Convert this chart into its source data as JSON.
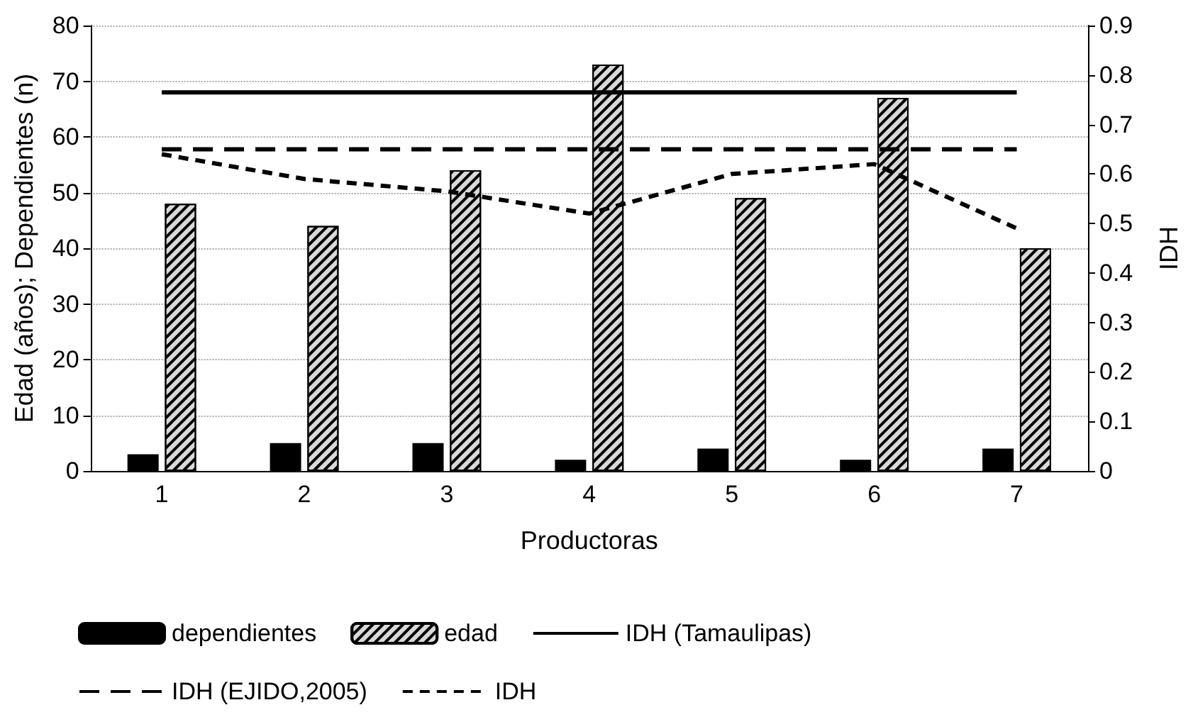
{
  "chart_data": {
    "type": "bar",
    "xlabel": "Productoras",
    "ylabel": "Edad (años); Dependientes (n)",
    "y2label": "IDH",
    "categories": [
      "1",
      "2",
      "3",
      "4",
      "5",
      "6",
      "7"
    ],
    "series": [
      {
        "name": "dependientes",
        "color": "#000000",
        "values": [
          3,
          5,
          5,
          2,
          4,
          2,
          4
        ]
      },
      {
        "name": "edad",
        "color": "#d9d9d9",
        "values": [
          48,
          44,
          54,
          73,
          49,
          67,
          40
        ]
      },
      {
        "name": "IDH (Tamaulipas)",
        "type": "line",
        "axis": "y2",
        "color": "#000000",
        "line_style": "solid",
        "values": [
          0.765,
          0.765,
          0.765,
          0.765,
          0.765,
          0.765,
          0.765
        ]
      },
      {
        "name": "IDH (EJIDO,2005)",
        "type": "line",
        "axis": "y2",
        "color": "#000000",
        "line_style": "dashed",
        "values": [
          0.65,
          0.65,
          0.65,
          0.65,
          0.65,
          0.65,
          0.65
        ]
      },
      {
        "name": "IDH",
        "type": "line",
        "axis": "y2",
        "color": "#000000",
        "line_style": "dashed",
        "values": [
          0.64,
          0.59,
          0.565,
          0.52,
          0.6,
          0.62,
          0.49
        ]
      }
    ],
    "ylim": [
      0,
      80
    ],
    "yticks": [
      0,
      10,
      20,
      30,
      40,
      50,
      60,
      70,
      80
    ],
    "y2lim": [
      0,
      0.9
    ],
    "y2ticks": [
      0,
      0.1,
      0.2,
      0.3,
      0.4,
      0.5,
      0.6,
      0.7,
      0.8,
      0.9
    ],
    "grid": "y",
    "legend": "bottom",
    "marker": "none"
  }
}
